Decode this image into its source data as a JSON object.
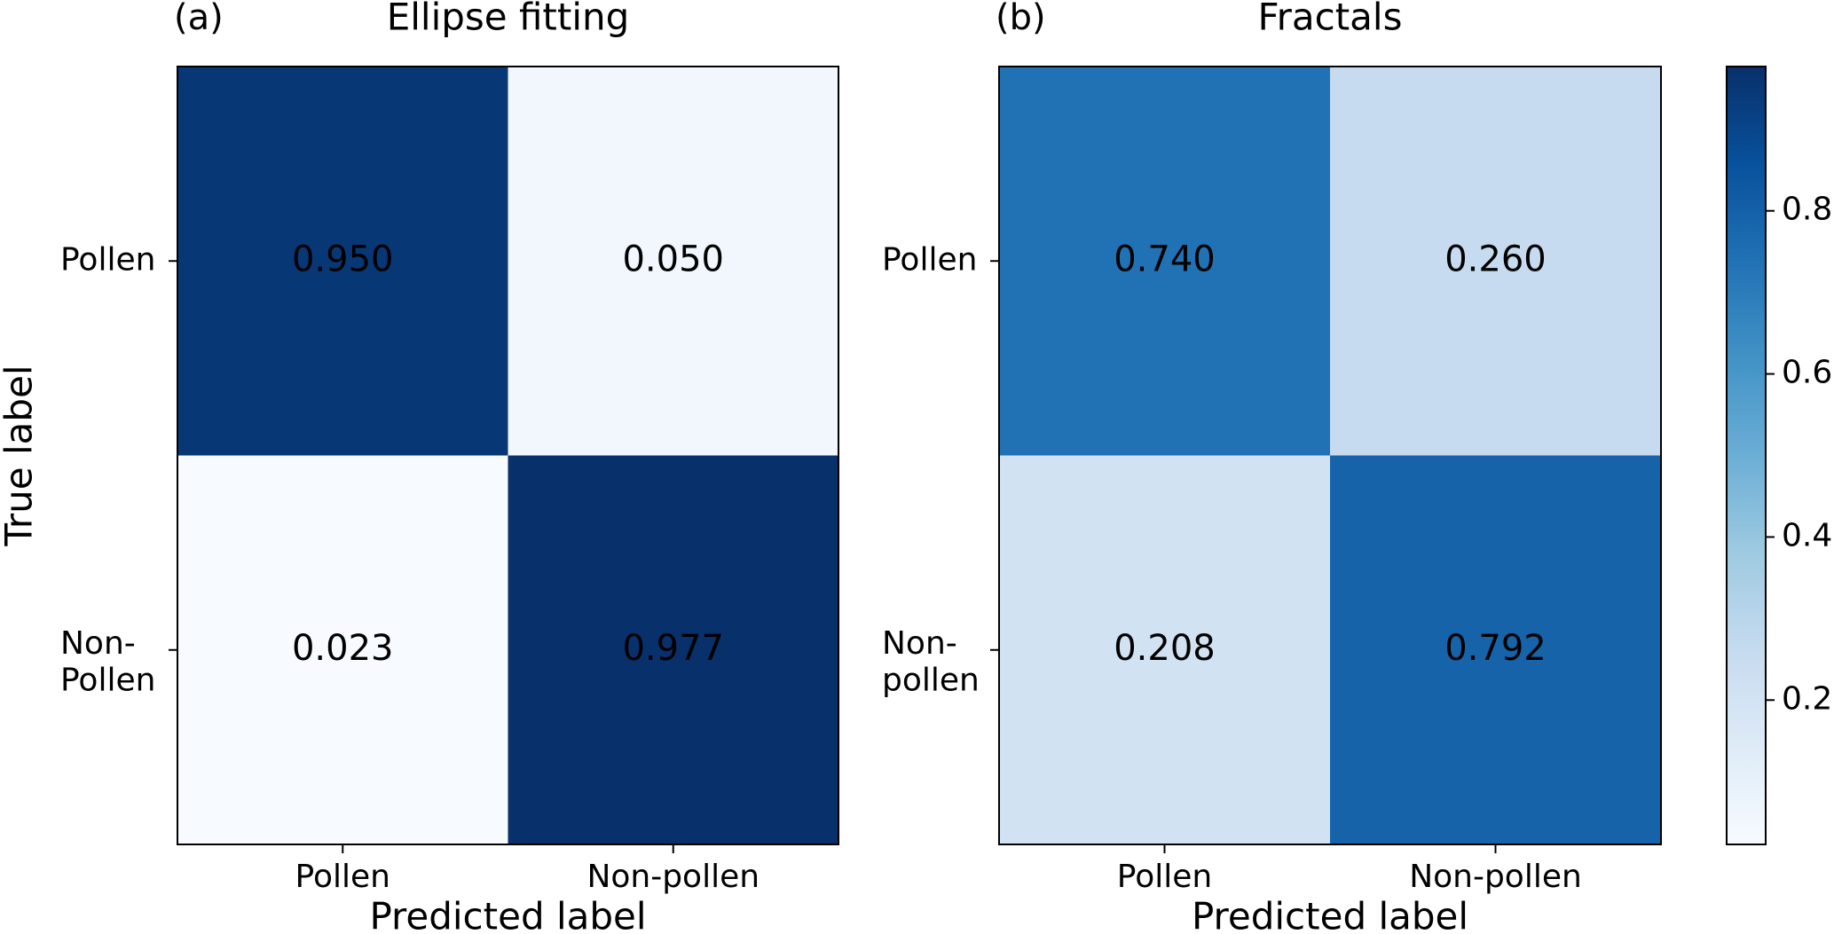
{
  "chart_data": [
    {
      "type": "heatmap",
      "panel_label": "(a)",
      "title": "Ellipse fitting",
      "x_label": "Predicted label",
      "y_label": "True label",
      "x_categories": [
        "Pollen",
        "Non-pollen"
      ],
      "y_categories": [
        "Pollen",
        "Non-\nPollen"
      ],
      "values": [
        [
          0.95,
          0.05
        ],
        [
          0.023,
          0.977
        ]
      ],
      "value_labels": [
        [
          "0.950",
          "0.050"
        ],
        [
          "0.023",
          "0.977"
        ]
      ],
      "clim": [
        0.023,
        0.977
      ],
      "colorscale": [
        "#f7fbff",
        "#deebf7",
        "#c6dbef",
        "#9ecae1",
        "#6baed6",
        "#4292c6",
        "#2171b5",
        "#08519c",
        "#08306b"
      ]
    },
    {
      "type": "heatmap",
      "panel_label": "(b)",
      "title": "Fractals",
      "x_label": "Predicted label",
      "x_categories": [
        "Pollen",
        "Non-pollen"
      ],
      "y_categories": [
        "Pollen",
        "Non-\npollen"
      ],
      "values": [
        [
          0.74,
          0.26
        ],
        [
          0.208,
          0.792
        ]
      ],
      "value_labels": [
        [
          "0.740",
          "0.260"
        ],
        [
          "0.208",
          "0.792"
        ]
      ],
      "clim": [
        0.023,
        0.977
      ],
      "colorscale": [
        "#f7fbff",
        "#deebf7",
        "#c6dbef",
        "#9ecae1",
        "#6baed6",
        "#4292c6",
        "#2171b5",
        "#08519c",
        "#08306b"
      ],
      "colorbar_ticks": [
        0.2,
        0.4,
        0.6,
        0.8
      ]
    }
  ]
}
